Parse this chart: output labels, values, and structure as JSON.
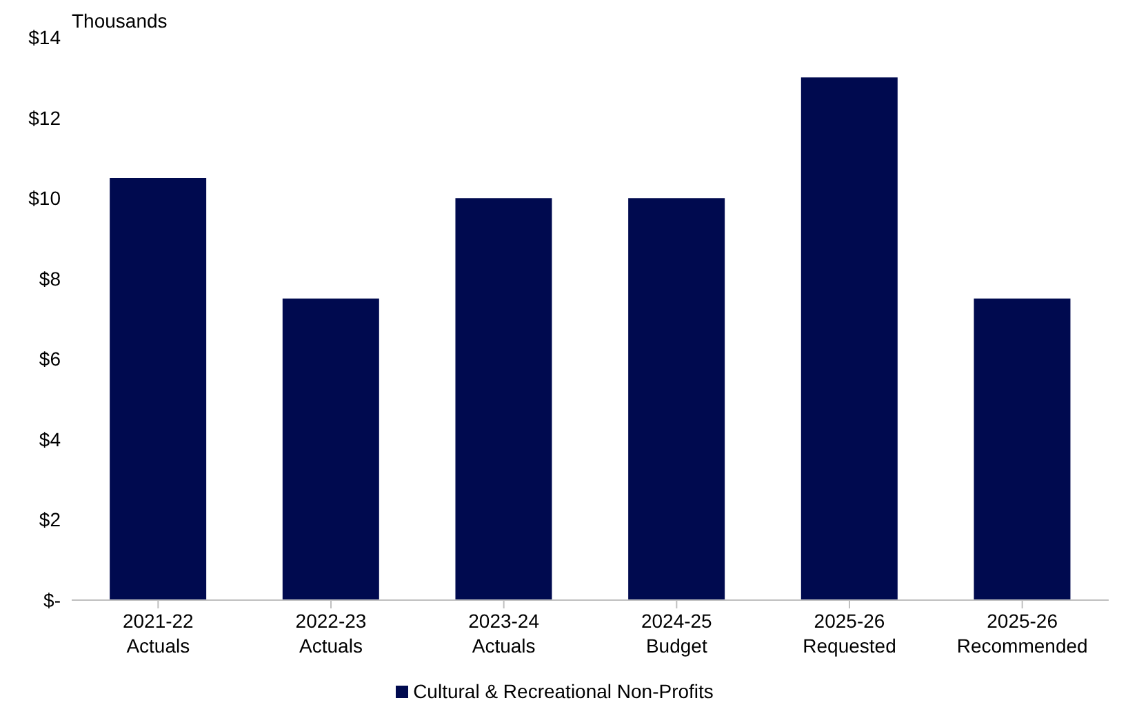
{
  "chart_data": {
    "type": "bar",
    "ylabel": "Thousands",
    "categories": [
      "2021-22\nActuals",
      "2022-23\nActuals",
      "2023-24\nActuals",
      "2024-25\nBudget",
      "2025-26\nRequested",
      "2025-26\nRecommended"
    ],
    "series": [
      {
        "name": "Cultural & Recreational Non-Profits",
        "color": "#000a4f",
        "values": [
          10.5,
          7.5,
          10,
          10,
          13,
          7.5
        ]
      }
    ],
    "ylim": [
      0,
      14
    ],
    "yticks": [
      {
        "value": 0,
        "label": "$-"
      },
      {
        "value": 2,
        "label": "$2"
      },
      {
        "value": 4,
        "label": "$4"
      },
      {
        "value": 6,
        "label": "$6"
      },
      {
        "value": 8,
        "label": "$8"
      },
      {
        "value": 10,
        "label": "$10"
      },
      {
        "value": 12,
        "label": "$12"
      },
      {
        "value": 14,
        "label": "$14"
      }
    ],
    "grid": false,
    "legend": "bottom"
  }
}
